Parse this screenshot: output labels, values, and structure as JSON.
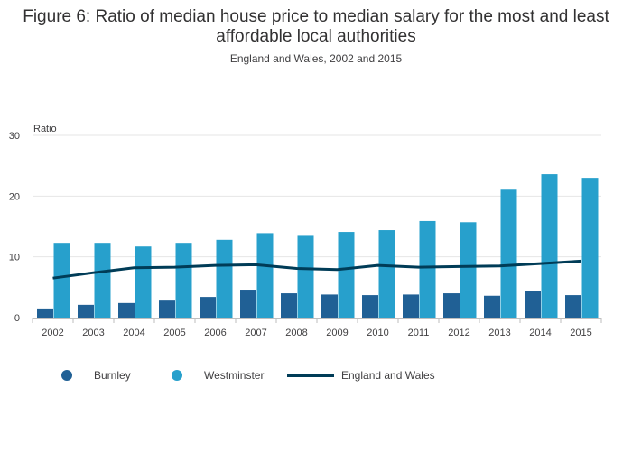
{
  "title": "Figure 6: Ratio of median house price to median salary for the most and least affordable local authorities",
  "subtitle": "England and Wales, 2002 and 2015",
  "chart_data": {
    "type": "bar",
    "title": "Figure 6: Ratio of median house price to median salary for the most and least affordable local authorities",
    "subtitle": "England and Wales, 2002 and 2015",
    "xlabel": "",
    "ylabel": "Ratio",
    "ylim": [
      0,
      30
    ],
    "yticks": [
      0,
      10,
      20,
      30
    ],
    "grid": true,
    "legend": "bottom-left",
    "categories": [
      "2002",
      "2003",
      "2004",
      "2005",
      "2006",
      "2007",
      "2008",
      "2009",
      "2010",
      "2011",
      "2012",
      "2013",
      "2014",
      "2015"
    ],
    "series": [
      {
        "name": "Burnley",
        "type": "bar",
        "color": "#206095",
        "values": [
          1.5,
          2.1,
          2.4,
          2.8,
          3.4,
          4.6,
          4.0,
          3.8,
          3.7,
          3.8,
          4.0,
          3.6,
          4.4,
          3.7
        ]
      },
      {
        "name": "Westminster",
        "type": "bar",
        "color": "#27a0cc",
        "values": [
          12.3,
          12.3,
          11.7,
          12.3,
          12.8,
          13.9,
          13.6,
          14.1,
          14.4,
          15.9,
          15.7,
          21.2,
          23.6,
          23.0
        ]
      },
      {
        "name": "England and Wales",
        "type": "line",
        "color": "#003c57",
        "values": [
          6.5,
          7.4,
          8.2,
          8.3,
          8.6,
          8.7,
          8.1,
          7.9,
          8.6,
          8.3,
          8.4,
          8.5,
          8.9,
          9.3
        ]
      }
    ]
  }
}
